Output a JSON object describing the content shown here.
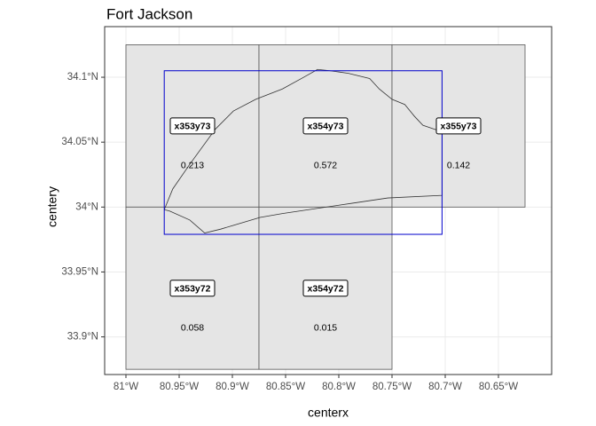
{
  "chart_data": {
    "type": "tilemap",
    "title": "Fort Jackson",
    "x_label": "centerx",
    "y_label": "centery",
    "xlim": [
      -81.02,
      -80.6
    ],
    "ylim": [
      33.871,
      34.139
    ],
    "xticks": [
      {
        "value": -81,
        "label": "81°W"
      },
      {
        "value": -80.95,
        "label": "80.95°W"
      },
      {
        "value": -80.9,
        "label": "80.9°W"
      },
      {
        "value": -80.85,
        "label": "80.85°W"
      },
      {
        "value": -80.8,
        "label": "80.8°W"
      },
      {
        "value": -80.75,
        "label": "80.75°W"
      },
      {
        "value": -80.7,
        "label": "80.7°W"
      },
      {
        "value": -80.65,
        "label": "80.65°W"
      }
    ],
    "yticks": [
      {
        "value": 33.9,
        "label": "33.9°N"
      },
      {
        "value": 33.95,
        "label": "33.95°N"
      },
      {
        "value": 34,
        "label": "34°N"
      },
      {
        "value": 34.05,
        "label": "34.05°N"
      },
      {
        "value": 34.1,
        "label": "34.1°N"
      }
    ],
    "grid": true,
    "tile_color": "#e5e5e5",
    "tile_border": "#555555",
    "bbox_color": "#0000cc",
    "boundary_color": "#333333",
    "tiles": [
      {
        "name": "x353y73",
        "value": 0.213,
        "xmin": -81,
        "xmax": -80.875,
        "ymin": 34,
        "ymax": 34.125
      },
      {
        "name": "x354y73",
        "value": 0.572,
        "xmin": -80.875,
        "xmax": -80.75,
        "ymin": 34,
        "ymax": 34.125
      },
      {
        "name": "x355y73",
        "value": 0.142,
        "xmin": -80.75,
        "xmax": -80.625,
        "ymin": 34,
        "ymax": 34.125
      },
      {
        "name": "x353y72",
        "value": 0.058,
        "xmin": -81,
        "xmax": -80.875,
        "ymin": 33.875,
        "ymax": 34
      },
      {
        "name": "x354y72",
        "value": 0.015,
        "xmin": -80.875,
        "xmax": -80.75,
        "ymin": 33.875,
        "ymax": 34
      }
    ],
    "bbox": {
      "xmin": -80.964,
      "xmax": -80.703,
      "ymin": 33.979,
      "ymax": 34.105
    },
    "boundary": {
      "x": [
        -80.964,
        -80.956,
        -80.94,
        -80.916,
        -80.899,
        -80.878,
        -80.853,
        -80.833,
        -80.82,
        -80.808,
        -80.791,
        -80.771,
        -80.762,
        -80.75,
        -80.738,
        -80.729,
        -80.721,
        -80.703,
        -80.703,
        -80.754,
        -80.787,
        -80.82,
        -80.853,
        -80.874,
        -80.911,
        -80.926,
        -80.94,
        -80.959,
        -80.964
      ],
      "y": [
        33.998,
        34.014,
        34.033,
        34.06,
        34.074,
        34.083,
        34.091,
        34.1,
        34.106,
        34.105,
        34.103,
        34.099,
        34.091,
        34.083,
        34.079,
        34.07,
        34.063,
        34.058,
        34.009,
        34.007,
        34.003,
        33.999,
        33.995,
        33.992,
        33.983,
        33.98,
        33.99,
        33.997,
        33.998
      ]
    }
  }
}
